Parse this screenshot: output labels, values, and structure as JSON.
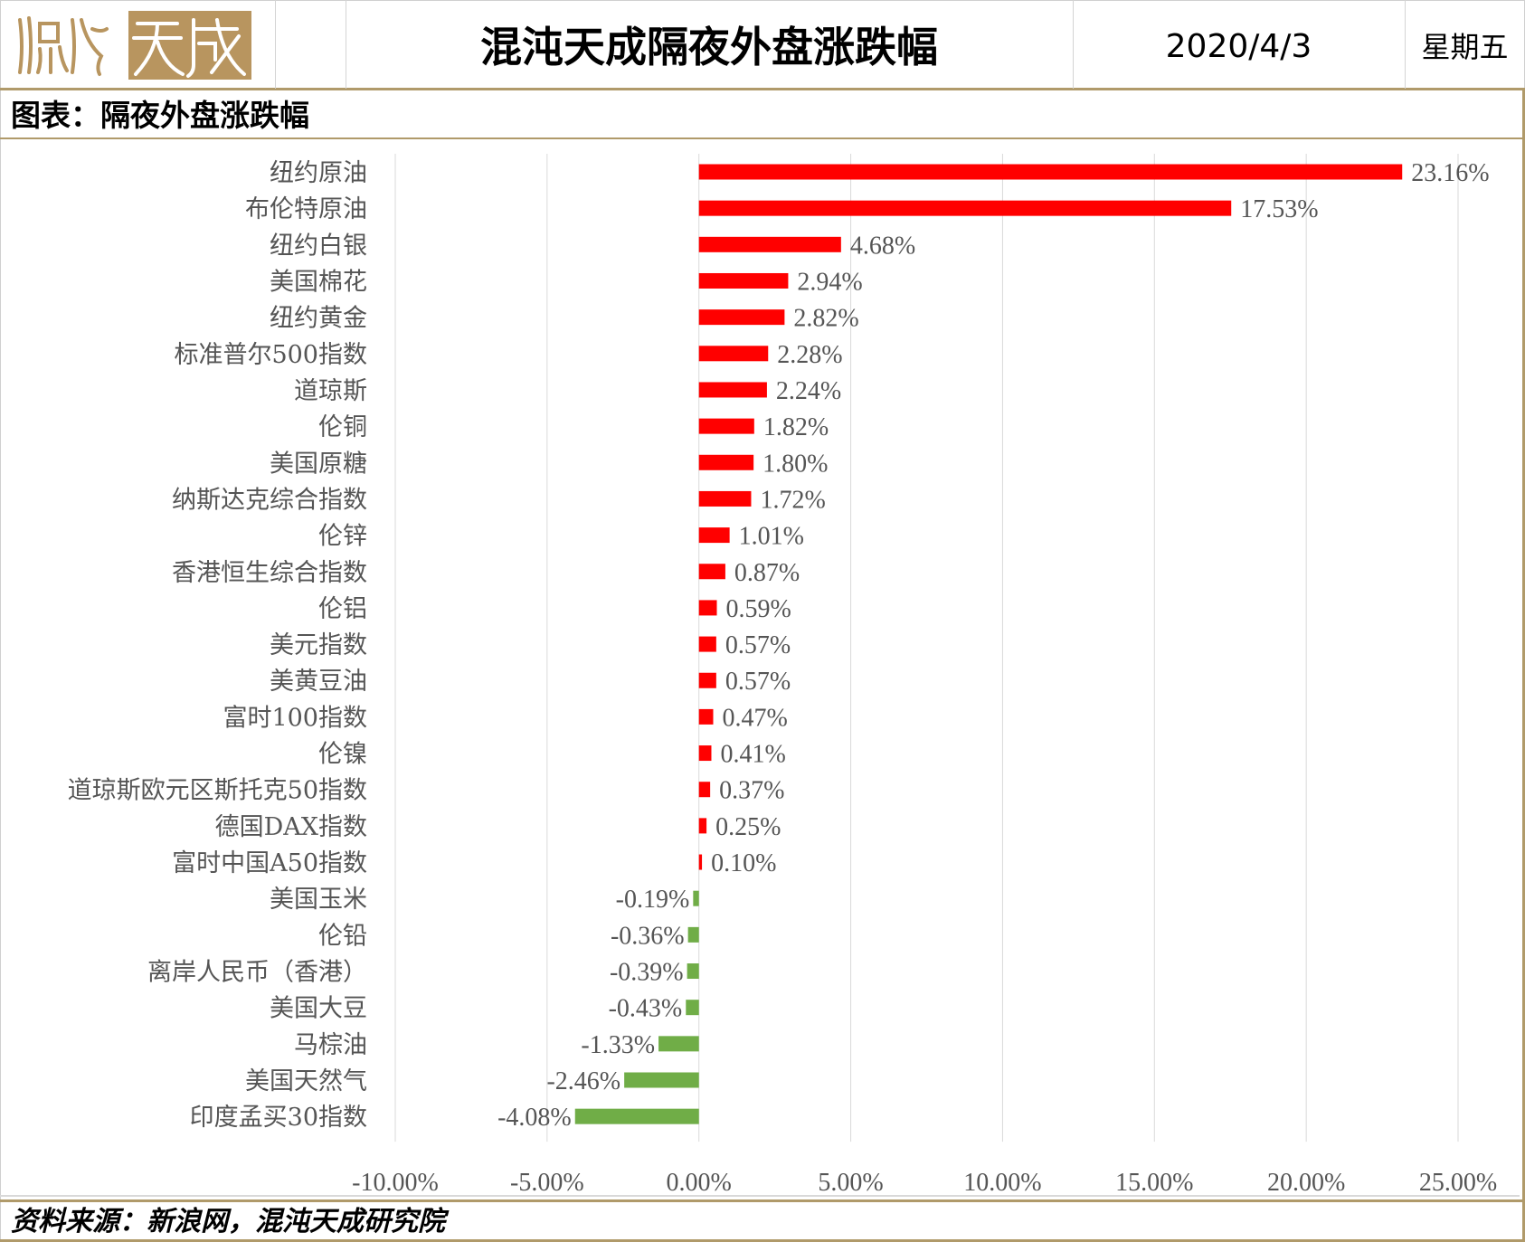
{
  "header": {
    "logo_text": "混沌天成",
    "title": "混沌天成隔夜外盘涨跌幅",
    "date": "2020/4/3",
    "weekday": "星期五"
  },
  "subtitle": "图表：隔夜外盘涨跌幅",
  "footer": "资料来源：新浪网，混沌天成研究院",
  "colors": {
    "positive": "#FF0000",
    "negative": "#70AD47",
    "accent": "#B09A6A"
  },
  "chart_data": {
    "type": "bar",
    "orientation": "horizontal",
    "title": "隔夜外盘涨跌幅",
    "categories": [
      "纽约原油",
      "布伦特原油",
      "纽约白银",
      "美国棉花",
      "纽约黄金",
      "标准普尔500指数",
      "道琼斯",
      "伦铜",
      "美国原糖",
      "纳斯达克综合指数",
      "伦锌",
      "香港恒生综合指数",
      "伦铝",
      "美元指数",
      "美黄豆油",
      "富时100指数",
      "伦镍",
      "道琼斯欧元区斯托克50指数",
      "德国DAX指数",
      "富时中国A50指数",
      "美国玉米",
      "伦铅",
      "离岸人民币（香港）",
      "美国大豆",
      "马棕油",
      "美国天然气",
      "印度孟买30指数"
    ],
    "values": [
      23.16,
      17.53,
      4.68,
      2.94,
      2.82,
      2.28,
      2.24,
      1.82,
      1.8,
      1.72,
      1.01,
      0.87,
      0.59,
      0.57,
      0.57,
      0.47,
      0.41,
      0.37,
      0.25,
      0.1,
      -0.19,
      -0.36,
      -0.39,
      -0.43,
      -1.33,
      -2.46,
      -4.08
    ],
    "value_labels": [
      "23.16%",
      "17.53%",
      "4.68%",
      "2.94%",
      "2.82%",
      "2.28%",
      "2.24%",
      "1.82%",
      "1.80%",
      "1.72%",
      "1.01%",
      "0.87%",
      "0.59%",
      "0.57%",
      "0.57%",
      "0.47%",
      "0.41%",
      "0.37%",
      "0.25%",
      "0.10%",
      "-0.19%",
      "-0.36%",
      "-0.39%",
      "-0.43%",
      "-1.33%",
      "-2.46%",
      "-4.08%"
    ],
    "xlim": [
      -10,
      25
    ],
    "xticks": [
      -10,
      -5,
      0,
      5,
      10,
      15,
      20,
      25
    ],
    "xtick_labels": [
      "-10.00%",
      "-5.00%",
      "0.00%",
      "5.00%",
      "10.00%",
      "15.00%",
      "20.00%",
      "25.00%"
    ],
    "grid": true,
    "legend": "none",
    "xlabel": "",
    "ylabel": ""
  }
}
